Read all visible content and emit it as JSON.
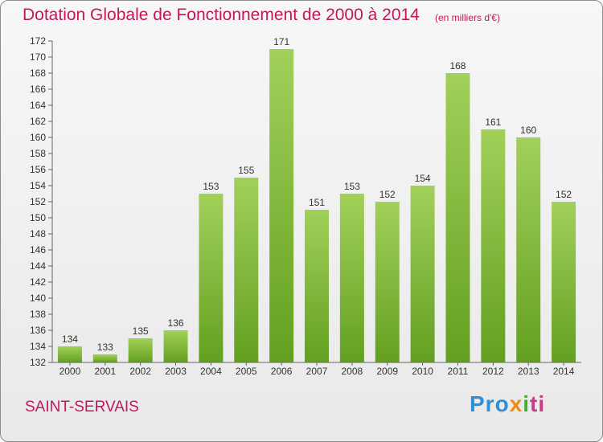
{
  "header": {
    "title": "Dotation Globale de Fonctionnement de 2000 à 2014",
    "unit": "(en milliers d'€)"
  },
  "footer": {
    "commune": "SAINT-SERVAIS",
    "brand": {
      "p1": "Pro",
      "p2": "x",
      "p3": "i",
      "p4": "ti"
    }
  },
  "colors": {
    "title": "#c2185b",
    "bar_top": "#a2d05a",
    "bar_bottom": "#63a020"
  },
  "chart_data": {
    "type": "bar",
    "title": "Dotation Globale de Fonctionnement de 2000 à 2014",
    "subtitle": "(en milliers d'€)",
    "xlabel": "",
    "ylabel": "",
    "categories": [
      "2000",
      "2001",
      "2002",
      "2003",
      "2004",
      "2005",
      "2006",
      "2007",
      "2008",
      "2009",
      "2010",
      "2011",
      "2012",
      "2013",
      "2014"
    ],
    "values": [
      134,
      133,
      135,
      136,
      153,
      155,
      171,
      151,
      153,
      152,
      154,
      168,
      161,
      160,
      152
    ],
    "ylim": [
      132,
      172
    ],
    "yticks": [
      132,
      134,
      136,
      138,
      140,
      142,
      144,
      146,
      148,
      150,
      152,
      154,
      156,
      158,
      160,
      162,
      164,
      166,
      168,
      170,
      172
    ],
    "grid": false,
    "legend": "none"
  }
}
